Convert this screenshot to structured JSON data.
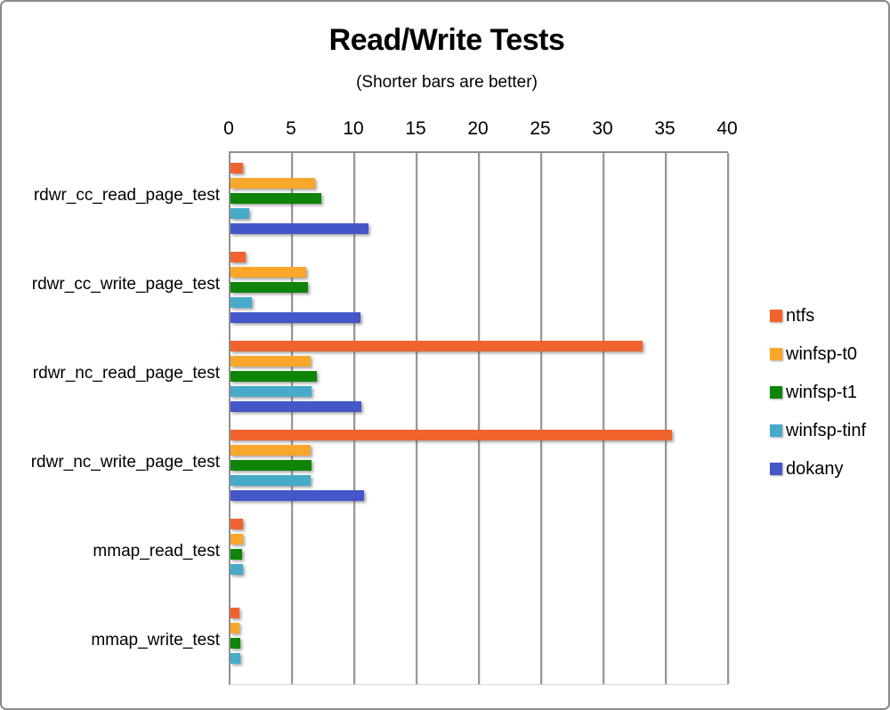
{
  "title": "Read/Write Tests",
  "subtitle": "(Shorter bars are better)",
  "colors": {
    "gridline": "#979797",
    "axis_line": "#8f8f8f",
    "outer_border": "#8a8a8a",
    "text": "#000000"
  },
  "chart_data": {
    "type": "bar",
    "orientation": "horizontal",
    "title": "Read/Write Tests",
    "subtitle": "(Shorter bars are better)",
    "xlabel": "",
    "ylabel": "",
    "xlim": [
      0,
      40
    ],
    "xticks": [
      0,
      5,
      10,
      15,
      20,
      25,
      30,
      35,
      40
    ],
    "grid": true,
    "legend_position": "right",
    "axis_position": "top",
    "categories": [
      "rdwr_cc_read_page_test",
      "rdwr_cc_write_page_test",
      "rdwr_nc_read_page_test",
      "rdwr_nc_write_page_test",
      "mmap_read_test",
      "mmap_write_test"
    ],
    "series": [
      {
        "name": "ntfs",
        "color": "#F0632F",
        "values": [
          1.0,
          1.2,
          33.1,
          35.4,
          1.0,
          0.7
        ]
      },
      {
        "name": "winfsp-t0",
        "color": "#F9A72B",
        "values": [
          6.8,
          6.1,
          6.4,
          6.4,
          1.0,
          0.7
        ]
      },
      {
        "name": "winfsp-t1",
        "color": "#0E8409",
        "values": [
          7.3,
          6.2,
          6.9,
          6.5,
          0.9,
          0.8
        ]
      },
      {
        "name": "winfsp-tinf",
        "color": "#46ABC9",
        "values": [
          1.5,
          1.7,
          6.5,
          6.4,
          1.0,
          0.8
        ]
      },
      {
        "name": "dokany",
        "color": "#4456C8",
        "values": [
          11.1,
          10.4,
          10.5,
          10.7,
          null,
          null
        ]
      }
    ]
  }
}
